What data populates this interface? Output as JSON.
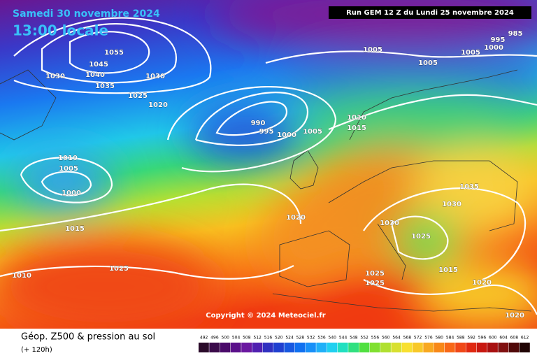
{
  "header": {
    "date": "Samedi 30 novembre 2024",
    "time": "13:00 locale",
    "run": "Run GEM 12 Z du Lundi 25 novembre 2024"
  },
  "isobar_labels": [
    "1055",
    "1045",
    "1040",
    "1035",
    "1030",
    "1030",
    "1025",
    "1020",
    "990",
    "995",
    "1000",
    "1005",
    "1010",
    "1005",
    "1000",
    "1015",
    "1025",
    "1010",
    "1020",
    "1005",
    "1005",
    "1005",
    "995",
    "1000",
    "985",
    "1010",
    "1015",
    "1035",
    "1030",
    "1030",
    "1025",
    "1015",
    "1020",
    "1025",
    "1025",
    "1020"
  ],
  "copyright": "Copyright © 2024 Meteociel.fr",
  "footer": {
    "title": "Géop. Z500 & pression au sol",
    "lead": "(+ 120h)"
  },
  "colorbar": {
    "labels": [
      492,
      496,
      500,
      504,
      508,
      512,
      516,
      520,
      524,
      528,
      532,
      536,
      540,
      544,
      548,
      552,
      556,
      560,
      564,
      568,
      572,
      576,
      580,
      584,
      588,
      592,
      596,
      600,
      604,
      608,
      612
    ]
  }
}
